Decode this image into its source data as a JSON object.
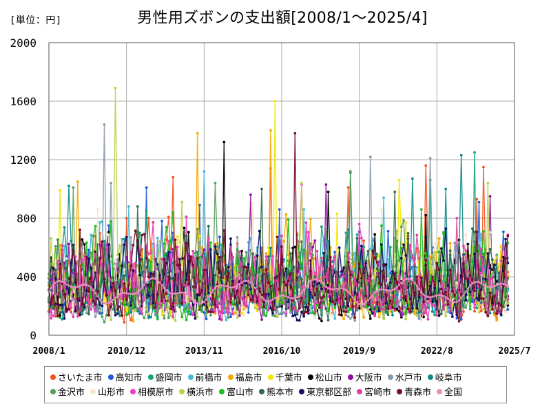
{
  "unit_label": "[単位：円]",
  "title": "男性用ズボンの支出額[2008/1～2025/4]",
  "chart_data": {
    "type": "line",
    "title": "男性用ズボンの支出額[2008/1～2025/4]",
    "ylabel": "",
    "xlabel": "",
    "ylim": [
      0,
      2000
    ],
    "yticks": [
      0,
      400,
      800,
      1200,
      1600,
      2000
    ],
    "x_tick_labels": [
      "2008/1",
      "2010/12",
      "2013/11",
      "2016/10",
      "2019/9",
      "2022/8",
      "2025/7"
    ],
    "x_start": "2008-01",
    "x_end": "2025-04",
    "grid": true,
    "legend_position": "bottom",
    "n_months": 208,
    "series": [
      {
        "name": "さいたま市",
        "color": "#f4511e",
        "spikes": [
          [
            35,
            800
          ],
          [
            56,
            1080
          ],
          [
            100,
            1140
          ],
          [
            170,
            1160
          ],
          [
            196,
            1150
          ],
          [
            193,
            930
          ],
          [
            135,
            1010
          ]
        ]
      },
      {
        "name": "高知市",
        "color": "#1e5bd6",
        "spikes": [
          [
            44,
            1010
          ],
          [
            68,
            890
          ],
          [
            104,
            860
          ],
          [
            194,
            910
          ],
          [
            51,
            780
          ]
        ]
      },
      {
        "name": "盛岡市",
        "color": "#12a37a",
        "spikes": [
          [
            192,
            1250
          ],
          [
            172,
            1060
          ],
          [
            136,
            1110
          ],
          [
            44,
            850
          ]
        ]
      },
      {
        "name": "前橋市",
        "color": "#45b8dc",
        "spikes": [
          [
            70,
            1120
          ],
          [
            36,
            880
          ],
          [
            151,
            940
          ],
          [
            115,
            860
          ]
        ]
      },
      {
        "name": "福島市",
        "color": "#f5a700",
        "spikes": [
          [
            67,
            1380
          ],
          [
            100,
            1400
          ],
          [
            13,
            1050
          ]
        ]
      },
      {
        "name": "千葉市",
        "color": "#f2e600",
        "spikes": [
          [
            102,
            1600
          ],
          [
            158,
            1060
          ],
          [
            5,
            990
          ],
          [
            130,
            830
          ]
        ]
      },
      {
        "name": "松山市",
        "color": "#000000",
        "spikes": [
          [
            79,
            1320
          ],
          [
            126,
            980
          ],
          [
            170,
            820
          ]
        ]
      },
      {
        "name": "大阪市",
        "color": "#8e0f9e",
        "spikes": [
          [
            91,
            960
          ],
          [
            125,
            1030
          ],
          [
            199,
            950
          ]
        ]
      },
      {
        "name": "水戸市",
        "color": "#8a9aa8",
        "spikes": [
          [
            25,
            1440
          ],
          [
            145,
            1220
          ],
          [
            172,
            1210
          ],
          [
            28,
            1040
          ]
        ]
      },
      {
        "name": "岐阜市",
        "color": "#0f8a8a",
        "spikes": [
          [
            186,
            1230
          ],
          [
            164,
            1070
          ],
          [
            9,
            1020
          ],
          [
            179,
            1000
          ]
        ]
      },
      {
        "name": "金沢市",
        "color": "#5a9c5a",
        "spikes": [
          [
            136,
            1120
          ],
          [
            75,
            1040
          ],
          [
            11,
            1010
          ]
        ]
      },
      {
        "name": "山形市",
        "color": "#f4e6c8",
        "spikes": [
          [
            92,
            900
          ],
          [
            150,
            860
          ],
          [
            22,
            860
          ]
        ]
      },
      {
        "name": "相模原市",
        "color": "#f23cc4",
        "spikes": [
          [
            114,
            1030
          ],
          [
            62,
            810
          ],
          [
            140,
            760
          ]
        ]
      },
      {
        "name": "横浜市",
        "color": "#b9d04a",
        "spikes": [
          [
            30,
            1690
          ],
          [
            114,
            1040
          ],
          [
            198,
            1040
          ],
          [
            60,
            910
          ]
        ]
      },
      {
        "name": "富山市",
        "color": "#1ebd1e",
        "spikes": [
          [
            56,
            840
          ],
          [
            168,
            860
          ],
          [
            108,
            790
          ]
        ]
      },
      {
        "name": "熊本市",
        "color": "#2f6b4a",
        "spikes": [
          [
            96,
            1000
          ],
          [
            156,
            980
          ],
          [
            40,
            880
          ]
        ]
      },
      {
        "name": "東京都区部",
        "color": "#101060",
        "spikes": [
          [
            40,
            640
          ],
          [
            150,
            620
          ]
        ]
      },
      {
        "name": "宮崎市",
        "color": "#e040a0",
        "spikes": [
          [
            116,
            770
          ],
          [
            184,
            800
          ],
          [
            72,
            660
          ]
        ]
      },
      {
        "name": "青森市",
        "color": "#7a0a2a",
        "spikes": [
          [
            111,
            1380
          ],
          [
            14,
            720
          ]
        ]
      },
      {
        "name": "全国",
        "color": "#e88fc0",
        "spikes": []
      }
    ]
  },
  "legend": {
    "rows": [
      [
        0,
        1,
        2,
        3,
        4,
        5,
        6,
        7,
        8,
        9
      ],
      [
        10,
        11,
        12,
        13,
        14,
        15,
        16,
        17,
        18,
        19
      ]
    ]
  }
}
